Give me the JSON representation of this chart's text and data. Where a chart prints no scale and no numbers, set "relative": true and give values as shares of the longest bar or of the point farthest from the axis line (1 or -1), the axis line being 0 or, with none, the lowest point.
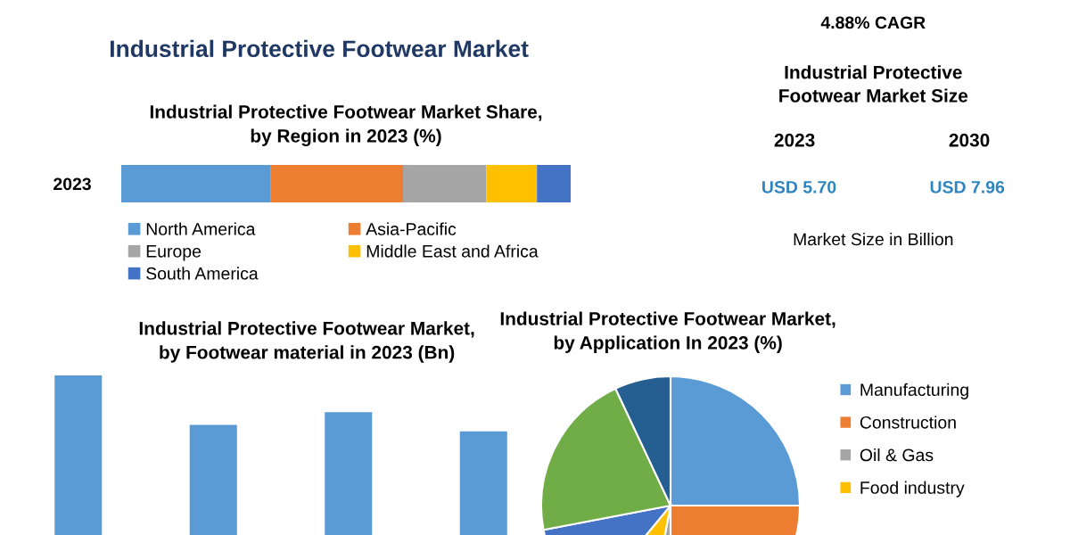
{
  "chart_data": [
    {
      "type": "bar",
      "orientation": "horizontal",
      "stacked": true,
      "relative": true,
      "title": "Industrial Protective Footwear Market",
      "subtitle": "Industrial Protective Footwear Market Share,\nby Region in 2023 (%)",
      "categories": [
        "2023"
      ],
      "legend": "bottom",
      "series": [
        {
          "name": "North America",
          "color": "#5b9bd5",
          "values": [
            0.333
          ]
        },
        {
          "name": "Asia-Pacific",
          "color": "#ed7d31",
          "values": [
            0.294
          ]
        },
        {
          "name": "Europe",
          "color": "#a5a5a5",
          "values": [
            0.185
          ]
        },
        {
          "name": "Middle East and Africa",
          "color": "#ffc000",
          "values": [
            0.113
          ]
        },
        {
          "name": "South America",
          "color": "#4472c4",
          "values": [
            0.075
          ]
        }
      ]
    },
    {
      "type": "other",
      "annotations": [
        "4.88% CAGR",
        "Industrial Protective\nFootwear Market Size",
        "2023",
        "2030",
        "USD 5.70",
        "USD 7.96",
        "Market Size in Billion"
      ]
    },
    {
      "type": "bar",
      "relative": true,
      "title": "Industrial Protective Footwear Market,\nby Footwear material in 2023 (Bn)",
      "categories": [
        null,
        null,
        null,
        null
      ],
      "values": [
        1,
        0.69,
        0.77,
        0.65
      ],
      "color": "#5b9bd5"
    },
    {
      "type": "pie",
      "title": "Industrial Protective Footwear Market,\nby Application In 2023 (%)",
      "legend": "right",
      "categories": [
        "Manufacturing",
        "Construction",
        "Oil & Gas",
        "Food industry",
        null,
        null,
        null
      ],
      "values": [
        25,
        25,
        3,
        8,
        11,
        21,
        7
      ],
      "colors": [
        "#5b9bd5",
        "#ed7d31",
        "#a5a5a5",
        "#ffc000",
        "#4472c4",
        "#70ad47",
        "#255e91"
      ]
    }
  ]
}
